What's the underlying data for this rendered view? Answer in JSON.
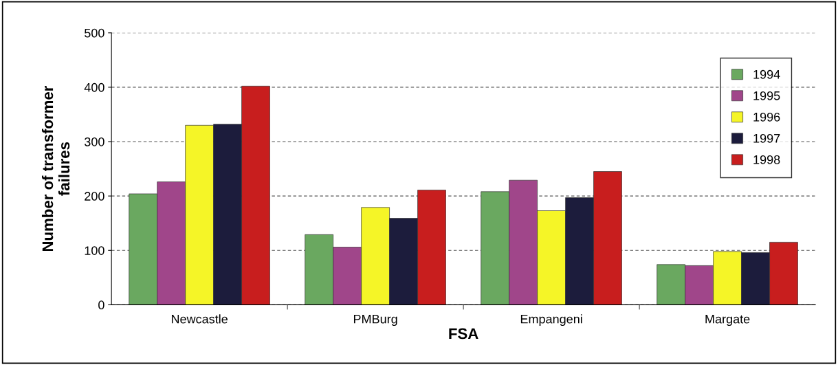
{
  "chart_data": {
    "type": "bar",
    "xlabel": "FSA",
    "ylabel": "Number of transformer\nfailures",
    "categories": [
      "Newcastle",
      "PMBurg",
      "Empangeni",
      "Margate"
    ],
    "series": [
      {
        "name": "1994",
        "color": "#6aa860",
        "values": [
          204,
          129,
          208,
          74
        ]
      },
      {
        "name": "1995",
        "color": "#a0468a",
        "values": [
          226,
          106,
          229,
          72
        ]
      },
      {
        "name": "1996",
        "color": "#f5f527",
        "values": [
          330,
          179,
          173,
          98
        ]
      },
      {
        "name": "1997",
        "color": "#1c1c3c",
        "values": [
          332,
          159,
          197,
          96
        ]
      },
      {
        "name": "1998",
        "color": "#c81e1e",
        "values": [
          402,
          211,
          245,
          115
        ]
      }
    ],
    "ylim": [
      0,
      500
    ],
    "yticks": [
      0,
      100,
      200,
      300,
      400,
      500
    ],
    "grid": "y",
    "legend": "top right"
  }
}
